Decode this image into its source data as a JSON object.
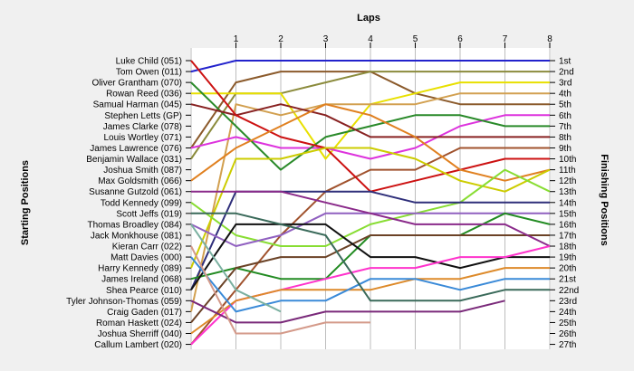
{
  "chart_data": {
    "type": "line",
    "title": "",
    "xlabel": "Laps",
    "y_left_label": "Starting Positions",
    "y_right_label": "Finishing Positions",
    "laps": [
      1,
      2,
      3,
      4,
      5,
      6,
      7,
      8
    ],
    "start_labels": [
      "Luke Child (051)",
      "Tom Owen (011)",
      "Oliver Grantham (070)",
      "Rowan Reed (036)",
      "Samual Harman (045)",
      "Stephen Letts (GP)",
      "James Clarke (078)",
      "Louis Wortley (071)",
      "James Lawrence (076)",
      "Benjamin Wallace (031)",
      "Joshua Smith (087)",
      "Max Goldsmith (066)",
      "Susanne Gutzold (061)",
      "Todd Kennedy (099)",
      "Scott Jeffs (019)",
      "Thomas Broadley (084)",
      "Jack Monkhouse (081)",
      "Kieran Carr (022)",
      "Matt Davies (000)",
      "Harry Kennedy (089)",
      "James Ireland (068)",
      "Shea Pearce (010)",
      "Tyler Johnson-Thomas (059)",
      "Craig Gaden (017)",
      "Roman Haskett (024)",
      "Joshua Sherriff (040)",
      "Callum Lambert (020)"
    ],
    "finish_labels": [
      "1st",
      "2nd",
      "3rd",
      "4th",
      "5th",
      "6th",
      "7th",
      "8th",
      "9th",
      "10th",
      "11th",
      "12th",
      "13th",
      "14th",
      "15th",
      "16th",
      "17th",
      "18th",
      "19th",
      "20th",
      "21st",
      "22nd",
      "23rd",
      "24th",
      "25th",
      "26th",
      "27th"
    ],
    "series": [
      {
        "color": "#2222cc",
        "positions": [
          2,
          1,
          1,
          1,
          1,
          1,
          1,
          1,
          1
        ]
      },
      {
        "color": "#8b5a2b",
        "positions": [
          9,
          3,
          2,
          2,
          2,
          4,
          5,
          5,
          5
        ]
      },
      {
        "color": "#8b8b3c",
        "positions": [
          10,
          4,
          4,
          3,
          2,
          2,
          2,
          2,
          2
        ]
      },
      {
        "color": "#e8e000",
        "positions": [
          4,
          4,
          4,
          10,
          5,
          4,
          3,
          3,
          3
        ]
      },
      {
        "color": "#d2a050",
        "positions": [
          24,
          5,
          6,
          5,
          5,
          5,
          4,
          4,
          4
        ]
      },
      {
        "color": "#dd33dd",
        "positions": [
          9,
          8,
          9,
          9,
          10,
          9,
          7,
          6,
          6
        ]
      },
      {
        "color": "#2a8a2a",
        "positions": [
          3,
          7,
          11,
          8,
          7,
          6,
          6,
          7,
          7
        ]
      },
      {
        "color": "#882222",
        "positions": [
          5,
          6,
          5,
          6,
          8,
          8,
          8,
          8,
          8
        ]
      },
      {
        "color": "#a0522d",
        "positions": [
          27,
          22,
          17,
          13,
          11,
          11,
          9,
          9,
          9
        ]
      },
      {
        "color": "#cc1111",
        "positions": [
          1,
          6,
          8,
          9,
          13,
          12,
          11,
          10,
          10
        ]
      },
      {
        "color": "#e08020",
        "positions": [
          12,
          9,
          7,
          5,
          6,
          8,
          11,
          12,
          11
        ]
      },
      {
        "color": "#cccc00",
        "positions": [
          20,
          10,
          10,
          9,
          9,
          10,
          12,
          13,
          11
        ]
      },
      {
        "color": "#88dd33",
        "positions": [
          14,
          17,
          18,
          18,
          16,
          15,
          14,
          11,
          13
        ]
      },
      {
        "color": "#2f2f7a",
        "positions": [
          22,
          13,
          13,
          13,
          13,
          14,
          14,
          14,
          14
        ]
      },
      {
        "color": "#9060c0",
        "positions": [
          16,
          18,
          17,
          15,
          15,
          15,
          15,
          15,
          15
        ]
      },
      {
        "color": "#228b22",
        "positions": [
          21,
          20,
          21,
          21,
          17,
          17,
          17,
          15,
          16
        ]
      },
      {
        "color": "#6b4226",
        "positions": [
          25,
          20,
          19,
          19,
          17,
          17,
          17,
          17,
          17
        ]
      },
      {
        "color": "#8a2a8a",
        "positions": [
          13,
          13,
          13,
          14,
          15,
          16,
          16,
          16,
          18
        ]
      },
      {
        "color": "#111111",
        "positions": [
          22,
          16,
          16,
          16,
          19,
          19,
          20,
          19,
          19
        ]
      },
      {
        "color": "#ff33cc",
        "positions": [
          27,
          23,
          22,
          21,
          20,
          20,
          19,
          19,
          18
        ]
      },
      {
        "color": "#dd8a2a",
        "positions": [
          26,
          23,
          22,
          22,
          22,
          21,
          21,
          20,
          20
        ]
      },
      {
        "color": "#3a8ad8",
        "positions": [
          19,
          24,
          23,
          23,
          21,
          21,
          22,
          21,
          21
        ]
      },
      {
        "color": "#3a6a5a",
        "positions": [
          15,
          15,
          16,
          17,
          23,
          23,
          23,
          22,
          22
        ]
      },
      {
        "color": "#7a2a7a",
        "positions": [
          23,
          25,
          25,
          24,
          24,
          24,
          24,
          23,
          null
        ]
      },
      {
        "color": "#7ab0a0",
        "positions": [
          16,
          22,
          24,
          null,
          null,
          null,
          null,
          null,
          null
        ]
      },
      {
        "color": "#d49a8a",
        "positions": [
          18,
          26,
          26,
          25,
          25,
          null,
          null,
          null,
          null
        ]
      }
    ]
  }
}
